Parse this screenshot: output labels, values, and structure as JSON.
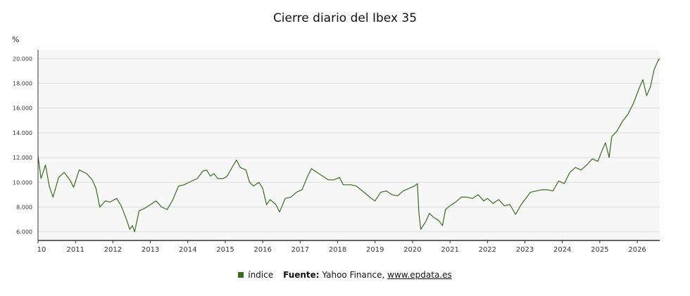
{
  "chart_data": {
    "type": "line",
    "title": "Cierre diario del Ibex 35",
    "ylabel": "%",
    "y_ticks": [
      "6.000",
      "8.000",
      "10.000",
      "12.000",
      "14.000",
      "16.000",
      "18.000",
      "20.000"
    ],
    "y_tick_values": [
      6000,
      8000,
      10000,
      12000,
      14000,
      16000,
      18000,
      20000
    ],
    "ylim": [
      5300,
      20700
    ],
    "xlim": [
      2010.0,
      2026.6
    ],
    "x_ticks": [
      "10",
      "2011",
      "2012",
      "2013",
      "2014",
      "2015",
      "2016",
      "2017",
      "2018",
      "2019",
      "2020",
      "2021",
      "2022",
      "2023",
      "2024",
      "2025",
      "2026"
    ],
    "x_tick_values": [
      2010,
      2011,
      2012,
      2013,
      2014,
      2015,
      2016,
      2017,
      2018,
      2019,
      2020,
      2021,
      2022,
      2023,
      2024,
      2025,
      2026
    ],
    "grid": true,
    "legend_position": "bottom",
    "series": [
      {
        "name": "índice",
        "color": "#3a6b1e",
        "points": [
          [
            2010.0,
            12100
          ],
          [
            2010.08,
            10300
          ],
          [
            2010.2,
            11400
          ],
          [
            2010.3,
            9700
          ],
          [
            2010.4,
            8800
          ],
          [
            2010.55,
            10400
          ],
          [
            2010.7,
            10800
          ],
          [
            2010.85,
            10200
          ],
          [
            2010.95,
            9600
          ],
          [
            2011.1,
            11000
          ],
          [
            2011.3,
            10700
          ],
          [
            2011.45,
            10200
          ],
          [
            2011.55,
            9500
          ],
          [
            2011.65,
            8000
          ],
          [
            2011.8,
            8500
          ],
          [
            2011.92,
            8400
          ],
          [
            2012.1,
            8700
          ],
          [
            2012.22,
            8100
          ],
          [
            2012.35,
            7100
          ],
          [
            2012.45,
            6200
          ],
          [
            2012.52,
            6500
          ],
          [
            2012.58,
            6000
          ],
          [
            2012.7,
            7700
          ],
          [
            2012.85,
            7900
          ],
          [
            2013.0,
            8200
          ],
          [
            2013.15,
            8500
          ],
          [
            2013.3,
            8000
          ],
          [
            2013.45,
            7800
          ],
          [
            2013.6,
            8600
          ],
          [
            2013.75,
            9700
          ],
          [
            2013.9,
            9800
          ],
          [
            2014.1,
            10100
          ],
          [
            2014.25,
            10300
          ],
          [
            2014.4,
            10900
          ],
          [
            2014.5,
            11000
          ],
          [
            2014.6,
            10500
          ],
          [
            2014.7,
            10700
          ],
          [
            2014.8,
            10300
          ],
          [
            2014.95,
            10300
          ],
          [
            2015.05,
            10500
          ],
          [
            2015.2,
            11300
          ],
          [
            2015.3,
            11800
          ],
          [
            2015.4,
            11200
          ],
          [
            2015.55,
            11000
          ],
          [
            2015.65,
            10000
          ],
          [
            2015.75,
            9700
          ],
          [
            2015.9,
            10000
          ],
          [
            2016.0,
            9500
          ],
          [
            2016.1,
            8200
          ],
          [
            2016.2,
            8600
          ],
          [
            2016.35,
            8200
          ],
          [
            2016.45,
            7600
          ],
          [
            2016.6,
            8700
          ],
          [
            2016.75,
            8800
          ],
          [
            2016.9,
            9200
          ],
          [
            2017.05,
            9400
          ],
          [
            2017.2,
            10500
          ],
          [
            2017.3,
            11100
          ],
          [
            2017.45,
            10800
          ],
          [
            2017.6,
            10500
          ],
          [
            2017.75,
            10200
          ],
          [
            2017.9,
            10200
          ],
          [
            2018.05,
            10400
          ],
          [
            2018.15,
            9800
          ],
          [
            2018.35,
            9800
          ],
          [
            2018.5,
            9700
          ],
          [
            2018.7,
            9200
          ],
          [
            2018.9,
            8700
          ],
          [
            2019.0,
            8500
          ],
          [
            2019.15,
            9200
          ],
          [
            2019.3,
            9300
          ],
          [
            2019.45,
            9000
          ],
          [
            2019.6,
            8900
          ],
          [
            2019.75,
            9300
          ],
          [
            2019.9,
            9500
          ],
          [
            2020.05,
            9700
          ],
          [
            2020.13,
            9900
          ],
          [
            2020.17,
            7500
          ],
          [
            2020.22,
            6200
          ],
          [
            2020.35,
            6800
          ],
          [
            2020.45,
            7500
          ],
          [
            2020.55,
            7200
          ],
          [
            2020.7,
            6900
          ],
          [
            2020.8,
            6500
          ],
          [
            2020.88,
            7800
          ],
          [
            2021.0,
            8100
          ],
          [
            2021.15,
            8400
          ],
          [
            2021.3,
            8800
          ],
          [
            2021.45,
            8800
          ],
          [
            2021.6,
            8700
          ],
          [
            2021.75,
            9000
          ],
          [
            2021.9,
            8500
          ],
          [
            2022.0,
            8700
          ],
          [
            2022.15,
            8300
          ],
          [
            2022.3,
            8600
          ],
          [
            2022.45,
            8100
          ],
          [
            2022.6,
            8200
          ],
          [
            2022.75,
            7400
          ],
          [
            2022.9,
            8200
          ],
          [
            2023.0,
            8600
          ],
          [
            2023.15,
            9200
          ],
          [
            2023.3,
            9300
          ],
          [
            2023.45,
            9400
          ],
          [
            2023.6,
            9400
          ],
          [
            2023.75,
            9300
          ],
          [
            2023.9,
            10100
          ],
          [
            2024.05,
            9900
          ],
          [
            2024.2,
            10800
          ],
          [
            2024.35,
            11200
          ],
          [
            2024.5,
            11000
          ],
          [
            2024.65,
            11400
          ],
          [
            2024.8,
            11900
          ],
          [
            2024.95,
            11700
          ],
          [
            2025.05,
            12500
          ],
          [
            2025.15,
            13200
          ],
          [
            2025.25,
            12000
          ],
          [
            2025.32,
            13700
          ],
          [
            2025.45,
            14100
          ],
          [
            2025.6,
            14900
          ],
          [
            2025.75,
            15500
          ],
          [
            2025.9,
            16400
          ],
          [
            2026.05,
            17600
          ],
          [
            2026.15,
            18300
          ],
          [
            2026.25,
            17000
          ],
          [
            2026.35,
            17700
          ],
          [
            2026.45,
            19100
          ],
          [
            2026.55,
            19800
          ],
          [
            2026.6,
            20000
          ]
        ]
      }
    ]
  },
  "footer": {
    "source_label": "Fuente:",
    "source_text": "Yahoo Finance,",
    "source_link": "www.epdata.es"
  }
}
